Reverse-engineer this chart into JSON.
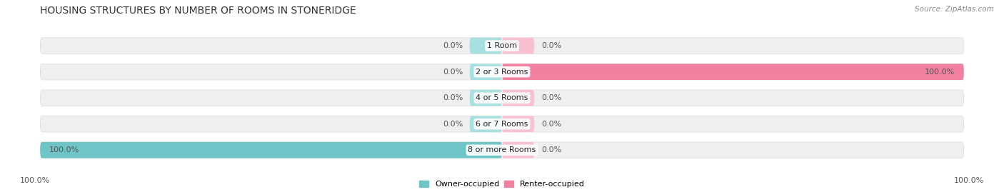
{
  "title": "HOUSING STRUCTURES BY NUMBER OF ROOMS IN STONERIDGE",
  "source": "Source: ZipAtlas.com",
  "categories": [
    "1 Room",
    "2 or 3 Rooms",
    "4 or 5 Rooms",
    "6 or 7 Rooms",
    "8 or more Rooms"
  ],
  "owner_values": [
    0.0,
    0.0,
    0.0,
    0.0,
    100.0
  ],
  "renter_values": [
    0.0,
    100.0,
    0.0,
    0.0,
    0.0
  ],
  "owner_color": "#6DC5C7",
  "renter_color": "#F07FA0",
  "renter_color_light": "#F9C0D0",
  "owner_color_light": "#A8DFE0",
  "bar_bg_color": "#EFEFEF",
  "owner_label_color": "#555555",
  "renter_label_color": "#555555",
  "background_color": "#FFFFFF",
  "title_fontsize": 10,
  "label_fontsize": 8,
  "category_fontsize": 8,
  "axis_label_left": "100.0%",
  "axis_label_right": "100.0%",
  "legend_owner": "Owner-occupied",
  "legend_renter": "Renter-occupied"
}
